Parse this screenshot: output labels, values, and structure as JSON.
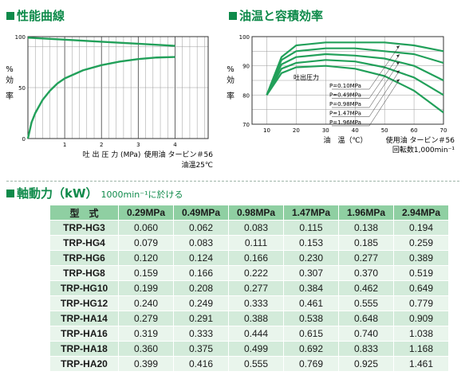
{
  "charts": {
    "performance": {
      "heading": "性能曲線",
      "ylabel": [
        "%",
        "効",
        "率"
      ],
      "xlabel": "吐 出 圧 力 (MPa)",
      "note_line1": "使用油 タービン＃56",
      "note_line2": "油温25℃",
      "y_ticks": [
        "100",
        "50",
        "0"
      ],
      "x_ticks": [
        "1",
        "2",
        "3",
        "4"
      ]
    },
    "oiltemp": {
      "heading": "油温と容積効率",
      "ylabel": [
        "%",
        "効",
        "率"
      ],
      "xlabel": "油　温（℃）",
      "note_line1": "使用油 タービン＃56",
      "note_line2": "回転数1,000min⁻¹",
      "y_ticks": [
        "100",
        "90",
        "80",
        "70"
      ],
      "x_ticks": [
        "10",
        "20",
        "30",
        "40",
        "50",
        "60",
        "70"
      ],
      "legend_title": "吐出圧力",
      "legend": [
        "P=0.10MPa",
        "P=0.49MPa",
        "P=0.98MPa",
        "P=1.47MPa",
        "P=1.96MPa"
      ]
    }
  },
  "chart_data": [
    {
      "type": "line",
      "title": "性能曲線",
      "xlabel": "吐出圧力 (MPa)",
      "ylabel": "%効率",
      "xlim": [
        0,
        4.9
      ],
      "ylim": [
        0,
        100
      ],
      "grid": true,
      "series": [
        {
          "x": [
            0,
            1,
            2,
            3,
            4
          ],
          "values": [
            99,
            97,
            95,
            93,
            91
          ]
        },
        {
          "x": [
            0,
            0.1,
            0.2,
            0.4,
            0.6,
            0.8,
            1.0,
            1.5,
            2.0,
            2.5,
            3.0,
            3.5,
            4.0
          ],
          "values": [
            0,
            16,
            25,
            38,
            47,
            54,
            59,
            67,
            72,
            75.5,
            78,
            79.5,
            80
          ]
        }
      ]
    },
    {
      "type": "line",
      "title": "油温と容積効率",
      "xlabel": "油温（℃）",
      "ylabel": "%効率",
      "xlim": [
        5,
        70
      ],
      "ylim": [
        70,
        100
      ],
      "grid": true,
      "legend": "right",
      "series": [
        {
          "name": "P=0.10MPa",
          "x": [
            10,
            15,
            20,
            30,
            40,
            50,
            60,
            70
          ],
          "values": [
            80,
            93,
            97,
            98,
            98,
            98,
            97,
            95
          ]
        },
        {
          "name": "P=0.49MPa",
          "x": [
            10,
            15,
            20,
            30,
            40,
            50,
            60,
            70
          ],
          "values": [
            80,
            92,
            95,
            96,
            96,
            95,
            94,
            91
          ]
        },
        {
          "name": "P=0.98MPa",
          "x": [
            10,
            15,
            20,
            30,
            40,
            50,
            60,
            70
          ],
          "values": [
            80,
            90.5,
            93,
            94,
            93.5,
            92.5,
            90,
            85
          ]
        },
        {
          "name": "P=1.47MPa",
          "x": [
            10,
            15,
            20,
            30,
            40,
            50,
            60,
            70
          ],
          "values": [
            80,
            89,
            91,
            92,
            91.5,
            89.5,
            86,
            80
          ]
        },
        {
          "name": "P=1.96MPa",
          "x": [
            10,
            15,
            20,
            30,
            40,
            50,
            60,
            70
          ],
          "values": [
            80,
            87.5,
            89.5,
            90,
            89,
            86.5,
            81.5,
            74
          ]
        }
      ]
    }
  ],
  "shaft": {
    "heading": "軸動力（kW）",
    "subheading": "1000min⁻¹に於ける",
    "headers": [
      "型　式",
      "0.29MPa",
      "0.49MPa",
      "0.98MPa",
      "1.47MPa",
      "1.96MPa",
      "2.94MPa"
    ],
    "rows": [
      [
        "TRP-HG3",
        "0.060",
        "0.062",
        "0.083",
        "0.115",
        "0.138",
        "0.194"
      ],
      [
        "TRP-HG4",
        "0.079",
        "0.083",
        "0.111",
        "0.153",
        "0.185",
        "0.259"
      ],
      [
        "TRP-HG6",
        "0.120",
        "0.124",
        "0.166",
        "0.230",
        "0.277",
        "0.389"
      ],
      [
        "TRP-HG8",
        "0.159",
        "0.166",
        "0.222",
        "0.307",
        "0.370",
        "0.519"
      ],
      [
        "TRP-HG10",
        "0.199",
        "0.208",
        "0.277",
        "0.384",
        "0.462",
        "0.649"
      ],
      [
        "TRP-HG12",
        "0.240",
        "0.249",
        "0.333",
        "0.461",
        "0.555",
        "0.779"
      ],
      [
        "TRP-HA14",
        "0.279",
        "0.291",
        "0.388",
        "0.538",
        "0.648",
        "0.909"
      ],
      [
        "TRP-HA16",
        "0.319",
        "0.333",
        "0.444",
        "0.615",
        "0.740",
        "1.038"
      ],
      [
        "TRP-HA18",
        "0.360",
        "0.375",
        "0.499",
        "0.692",
        "0.833",
        "1.168"
      ],
      [
        "TRP-HA20",
        "0.399",
        "0.416",
        "0.555",
        "0.769",
        "0.925",
        "1.461"
      ]
    ]
  },
  "colors": {
    "accent": "#0e8a4a",
    "curve": "#22a05a",
    "header": "#8fcfa2",
    "row_a": "#d3ebda",
    "row_b": "#e9f5ec"
  }
}
